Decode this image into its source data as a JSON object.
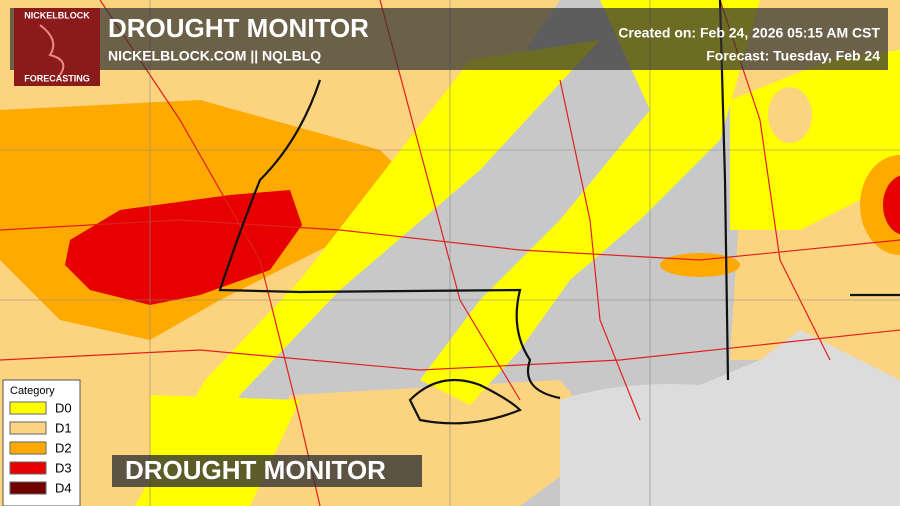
{
  "header": {
    "title": "DROUGHT MONITOR",
    "subtitle": "NICKELBLOCK.COM || NQLBLQ",
    "created": "Created on: Feb 24, 2026 05:15 AM CST",
    "forecast": "Forecast: Tuesday, Feb 24"
  },
  "logo": {
    "top": "NICKELBLOCK",
    "bottom": "FORECASTING"
  },
  "legend": {
    "title": "Category",
    "items": [
      {
        "label": "D0",
        "color": "#ffff00"
      },
      {
        "label": "D1",
        "color": "#fcd37f"
      },
      {
        "label": "D2",
        "color": "#ffaa00"
      },
      {
        "label": "D3",
        "color": "#e60000"
      },
      {
        "label": "D4",
        "color": "#730000"
      }
    ]
  },
  "banner": {
    "title": "DROUGHT MONITOR"
  }
}
